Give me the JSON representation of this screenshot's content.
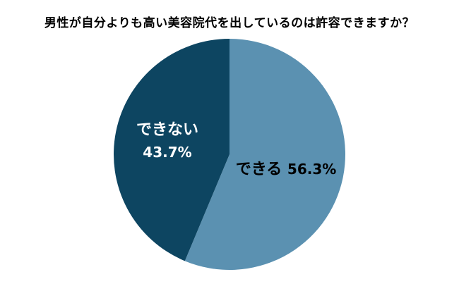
{
  "chart_data": {
    "type": "pie",
    "title": "男性が自分よりも高い美容院代を出しているのは許容できますか？",
    "slices": [
      {
        "label": "できる",
        "value": 56.3,
        "value_text": "56.3%",
        "color": "#5b91b1",
        "text_color": "#000000"
      },
      {
        "label": "できない",
        "value": 43.7,
        "value_text": "43.7%",
        "color": "#0d4561",
        "text_color": "#ffffff"
      }
    ],
    "start": "12 o'clock",
    "direction": "clockwise",
    "legend": "none"
  }
}
